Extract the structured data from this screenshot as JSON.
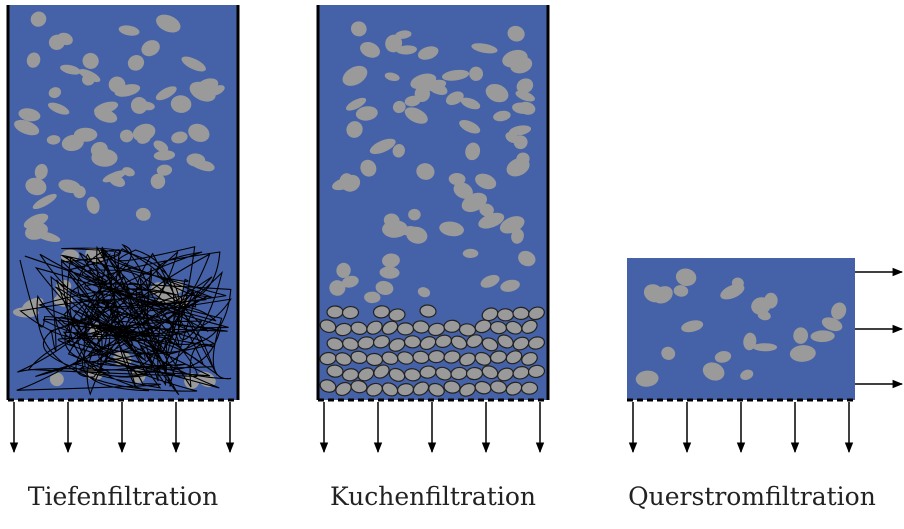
{
  "labels": [
    "Tiefenfiltration",
    "Kuchenfiltration",
    "Querstromfiltration"
  ]
}
